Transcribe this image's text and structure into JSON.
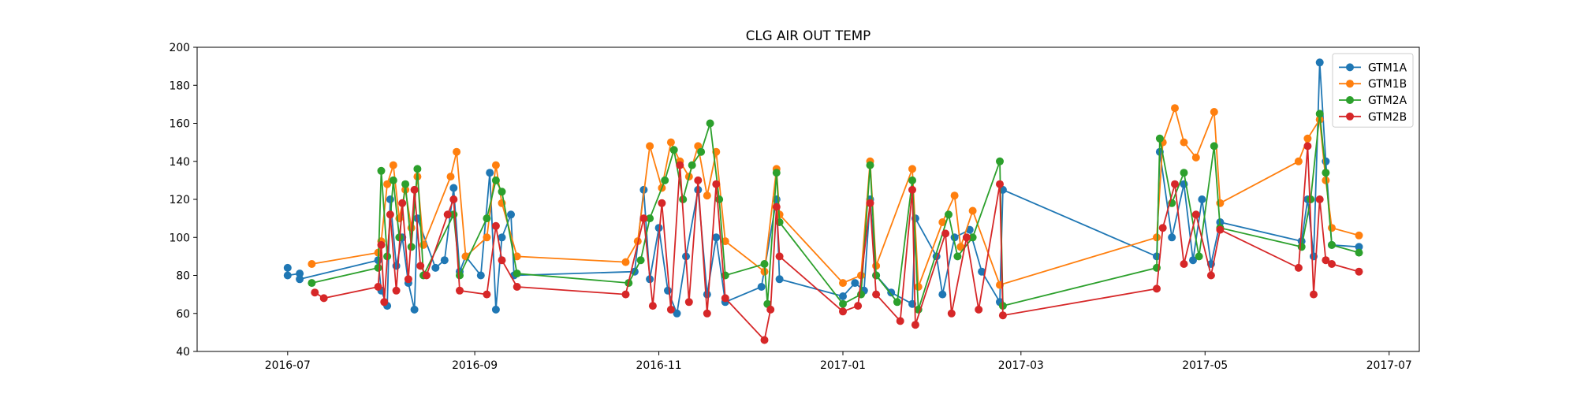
{
  "chart_data": {
    "type": "line",
    "title": "CLG AIR OUT TEMP",
    "xlabel": "",
    "ylabel": "",
    "x_axis": "date",
    "xlim": [
      "2016-06-01",
      "2017-07-11"
    ],
    "ylim": [
      40,
      200
    ],
    "y_ticks": [
      40,
      60,
      80,
      100,
      120,
      140,
      160,
      180,
      200
    ],
    "x_ticks": [
      {
        "date": "2016-07-01",
        "label": "2016-07"
      },
      {
        "date": "2016-09-01",
        "label": "2016-09"
      },
      {
        "date": "2016-11-01",
        "label": "2016-11"
      },
      {
        "date": "2017-01-01",
        "label": "2017-01"
      },
      {
        "date": "2017-03-01",
        "label": "2017-03"
      },
      {
        "date": "2017-05-01",
        "label": "2017-05"
      },
      {
        "date": "2017-07-01",
        "label": "2017-07"
      }
    ],
    "grid": false,
    "legend_position": "top-right",
    "marker": "circle",
    "series": [
      {
        "name": "GTM1A",
        "color": "#1f77b4",
        "points": [
          [
            "2016-07-01",
            84
          ],
          [
            "2016-07-01",
            80
          ],
          [
            "2016-07-05",
            81
          ],
          [
            "2016-07-05",
            78
          ],
          [
            "2016-07-31",
            88
          ],
          [
            "2016-08-01",
            72
          ],
          [
            "2016-08-03",
            64
          ],
          [
            "2016-08-04",
            120
          ],
          [
            "2016-08-06",
            85
          ],
          [
            "2016-08-08",
            100
          ],
          [
            "2016-08-10",
            76
          ],
          [
            "2016-08-12",
            62
          ],
          [
            "2016-08-13",
            110
          ],
          [
            "2016-08-19",
            84
          ],
          [
            "2016-08-22",
            88
          ],
          [
            "2016-08-25",
            126
          ],
          [
            "2016-08-27",
            82
          ],
          [
            "2016-08-29",
            90
          ],
          [
            "2016-09-03",
            80
          ],
          [
            "2016-09-06",
            134
          ],
          [
            "2016-09-08",
            62
          ],
          [
            "2016-09-10",
            100
          ],
          [
            "2016-09-13",
            112
          ],
          [
            "2016-09-14",
            80
          ],
          [
            "2016-10-24",
            82
          ],
          [
            "2016-10-27",
            125
          ],
          [
            "2016-10-29",
            78
          ],
          [
            "2016-11-01",
            105
          ],
          [
            "2016-11-04",
            72
          ],
          [
            "2016-11-07",
            60
          ],
          [
            "2016-11-10",
            90
          ],
          [
            "2016-11-14",
            125
          ],
          [
            "2016-11-17",
            70
          ],
          [
            "2016-11-20",
            100
          ],
          [
            "2016-11-23",
            66
          ],
          [
            "2016-12-05",
            74
          ],
          [
            "2016-12-10",
            120
          ],
          [
            "2016-12-11",
            78
          ],
          [
            "2017-01-01",
            69
          ],
          [
            "2017-01-05",
            76
          ],
          [
            "2017-01-08",
            72
          ],
          [
            "2017-01-10",
            120
          ],
          [
            "2017-01-12",
            80
          ],
          [
            "2017-01-17",
            71
          ],
          [
            "2017-01-24",
            65
          ],
          [
            "2017-01-25",
            110
          ],
          [
            "2017-02-01",
            90
          ],
          [
            "2017-02-03",
            70
          ],
          [
            "2017-02-07",
            100
          ],
          [
            "2017-02-12",
            104
          ],
          [
            "2017-02-16",
            82
          ],
          [
            "2017-02-22",
            66
          ],
          [
            "2017-02-23",
            125
          ],
          [
            "2017-04-15",
            90
          ],
          [
            "2017-04-16",
            145
          ],
          [
            "2017-04-20",
            100
          ],
          [
            "2017-04-24",
            128
          ],
          [
            "2017-04-27",
            88
          ],
          [
            "2017-04-30",
            120
          ],
          [
            "2017-05-03",
            86
          ],
          [
            "2017-05-06",
            108
          ],
          [
            "2017-06-02",
            98
          ],
          [
            "2017-06-04",
            120
          ],
          [
            "2017-06-06",
            90
          ],
          [
            "2017-06-08",
            192
          ],
          [
            "2017-06-10",
            140
          ],
          [
            "2017-06-12",
            96
          ],
          [
            "2017-06-21",
            95
          ]
        ]
      },
      {
        "name": "GTM1B",
        "color": "#ff7f0e",
        "points": [
          [
            "2016-07-09",
            86
          ],
          [
            "2016-07-31",
            92
          ],
          [
            "2016-08-01",
            98
          ],
          [
            "2016-08-03",
            128
          ],
          [
            "2016-08-05",
            138
          ],
          [
            "2016-08-07",
            110
          ],
          [
            "2016-08-09",
            125
          ],
          [
            "2016-08-11",
            105
          ],
          [
            "2016-08-13",
            132
          ],
          [
            "2016-08-15",
            96
          ],
          [
            "2016-08-24",
            132
          ],
          [
            "2016-08-26",
            145
          ],
          [
            "2016-08-29",
            90
          ],
          [
            "2016-09-05",
            100
          ],
          [
            "2016-09-08",
            138
          ],
          [
            "2016-09-10",
            118
          ],
          [
            "2016-09-15",
            90
          ],
          [
            "2016-10-21",
            87
          ],
          [
            "2016-10-25",
            98
          ],
          [
            "2016-10-29",
            148
          ],
          [
            "2016-11-02",
            126
          ],
          [
            "2016-11-05",
            150
          ],
          [
            "2016-11-08",
            140
          ],
          [
            "2016-11-11",
            132
          ],
          [
            "2016-11-14",
            148
          ],
          [
            "2016-11-17",
            122
          ],
          [
            "2016-11-20",
            145
          ],
          [
            "2016-11-23",
            98
          ],
          [
            "2016-12-06",
            82
          ],
          [
            "2016-12-10",
            136
          ],
          [
            "2016-12-11",
            112
          ],
          [
            "2017-01-01",
            76
          ],
          [
            "2017-01-07",
            80
          ],
          [
            "2017-01-10",
            140
          ],
          [
            "2017-01-12",
            85
          ],
          [
            "2017-01-24",
            136
          ],
          [
            "2017-01-26",
            74
          ],
          [
            "2017-02-03",
            108
          ],
          [
            "2017-02-07",
            122
          ],
          [
            "2017-02-09",
            95
          ],
          [
            "2017-02-13",
            114
          ],
          [
            "2017-02-22",
            75
          ],
          [
            "2017-04-15",
            100
          ],
          [
            "2017-04-17",
            150
          ],
          [
            "2017-04-21",
            168
          ],
          [
            "2017-04-24",
            150
          ],
          [
            "2017-04-28",
            142
          ],
          [
            "2017-05-04",
            166
          ],
          [
            "2017-05-06",
            118
          ],
          [
            "2017-06-01",
            140
          ],
          [
            "2017-06-04",
            152
          ],
          [
            "2017-06-08",
            162
          ],
          [
            "2017-06-10",
            130
          ],
          [
            "2017-06-12",
            105
          ],
          [
            "2017-06-21",
            101
          ]
        ]
      },
      {
        "name": "GTM2A",
        "color": "#2ca02c",
        "points": [
          [
            "2016-07-09",
            76
          ],
          [
            "2016-07-31",
            84
          ],
          [
            "2016-08-01",
            135
          ],
          [
            "2016-08-03",
            90
          ],
          [
            "2016-08-05",
            130
          ],
          [
            "2016-08-07",
            100
          ],
          [
            "2016-08-09",
            128
          ],
          [
            "2016-08-11",
            95
          ],
          [
            "2016-08-13",
            136
          ],
          [
            "2016-08-15",
            80
          ],
          [
            "2016-08-25",
            112
          ],
          [
            "2016-08-27",
            80
          ],
          [
            "2016-09-05",
            110
          ],
          [
            "2016-09-08",
            130
          ],
          [
            "2016-09-10",
            124
          ],
          [
            "2016-09-15",
            81
          ],
          [
            "2016-10-22",
            76
          ],
          [
            "2016-10-26",
            88
          ],
          [
            "2016-10-29",
            110
          ],
          [
            "2016-11-03",
            130
          ],
          [
            "2016-11-06",
            146
          ],
          [
            "2016-11-09",
            120
          ],
          [
            "2016-11-12",
            138
          ],
          [
            "2016-11-15",
            145
          ],
          [
            "2016-11-18",
            160
          ],
          [
            "2016-11-21",
            120
          ],
          [
            "2016-11-23",
            80
          ],
          [
            "2016-12-06",
            86
          ],
          [
            "2016-12-07",
            65
          ],
          [
            "2016-12-10",
            134
          ],
          [
            "2016-12-11",
            108
          ],
          [
            "2017-01-01",
            65
          ],
          [
            "2017-01-07",
            70
          ],
          [
            "2017-01-10",
            138
          ],
          [
            "2017-01-12",
            80
          ],
          [
            "2017-01-19",
            66
          ],
          [
            "2017-01-24",
            130
          ],
          [
            "2017-01-26",
            62
          ],
          [
            "2017-02-05",
            112
          ],
          [
            "2017-02-08",
            90
          ],
          [
            "2017-02-13",
            100
          ],
          [
            "2017-02-22",
            140
          ],
          [
            "2017-02-23",
            64
          ],
          [
            "2017-04-15",
            84
          ],
          [
            "2017-04-16",
            152
          ],
          [
            "2017-04-20",
            118
          ],
          [
            "2017-04-24",
            134
          ],
          [
            "2017-04-29",
            90
          ],
          [
            "2017-05-04",
            148
          ],
          [
            "2017-05-06",
            105
          ],
          [
            "2017-06-02",
            95
          ],
          [
            "2017-06-05",
            120
          ],
          [
            "2017-06-08",
            165
          ],
          [
            "2017-06-10",
            134
          ],
          [
            "2017-06-12",
            96
          ],
          [
            "2017-06-21",
            92
          ]
        ]
      },
      {
        "name": "GTM2B",
        "color": "#d62728",
        "points": [
          [
            "2016-07-10",
            71
          ],
          [
            "2016-07-13",
            68
          ],
          [
            "2016-07-31",
            74
          ],
          [
            "2016-08-01",
            96
          ],
          [
            "2016-08-02",
            66
          ],
          [
            "2016-08-04",
            112
          ],
          [
            "2016-08-06",
            72
          ],
          [
            "2016-08-08",
            118
          ],
          [
            "2016-08-10",
            78
          ],
          [
            "2016-08-12",
            125
          ],
          [
            "2016-08-14",
            85
          ],
          [
            "2016-08-16",
            80
          ],
          [
            "2016-08-23",
            112
          ],
          [
            "2016-08-25",
            120
          ],
          [
            "2016-08-27",
            72
          ],
          [
            "2016-09-05",
            70
          ],
          [
            "2016-09-08",
            106
          ],
          [
            "2016-09-10",
            88
          ],
          [
            "2016-09-15",
            74
          ],
          [
            "2016-10-21",
            70
          ],
          [
            "2016-10-27",
            110
          ],
          [
            "2016-10-30",
            64
          ],
          [
            "2016-11-02",
            118
          ],
          [
            "2016-11-05",
            62
          ],
          [
            "2016-11-08",
            138
          ],
          [
            "2016-11-11",
            66
          ],
          [
            "2016-11-14",
            130
          ],
          [
            "2016-11-17",
            60
          ],
          [
            "2016-11-20",
            128
          ],
          [
            "2016-11-23",
            68
          ],
          [
            "2016-12-06",
            46
          ],
          [
            "2016-12-08",
            62
          ],
          [
            "2016-12-10",
            116
          ],
          [
            "2016-12-11",
            90
          ],
          [
            "2017-01-01",
            61
          ],
          [
            "2017-01-06",
            64
          ],
          [
            "2017-01-10",
            118
          ],
          [
            "2017-01-12",
            70
          ],
          [
            "2017-01-20",
            56
          ],
          [
            "2017-01-24",
            125
          ],
          [
            "2017-01-25",
            54
          ],
          [
            "2017-02-04",
            102
          ],
          [
            "2017-02-06",
            60
          ],
          [
            "2017-02-11",
            100
          ],
          [
            "2017-02-15",
            62
          ],
          [
            "2017-02-22",
            128
          ],
          [
            "2017-02-23",
            59
          ],
          [
            "2017-04-15",
            73
          ],
          [
            "2017-04-17",
            105
          ],
          [
            "2017-04-21",
            128
          ],
          [
            "2017-04-24",
            86
          ],
          [
            "2017-04-28",
            112
          ],
          [
            "2017-05-03",
            80
          ],
          [
            "2017-05-06",
            104
          ],
          [
            "2017-06-01",
            84
          ],
          [
            "2017-06-04",
            148
          ],
          [
            "2017-06-06",
            70
          ],
          [
            "2017-06-08",
            120
          ],
          [
            "2017-06-10",
            88
          ],
          [
            "2017-06-12",
            86
          ],
          [
            "2017-06-21",
            82
          ]
        ]
      }
    ]
  }
}
